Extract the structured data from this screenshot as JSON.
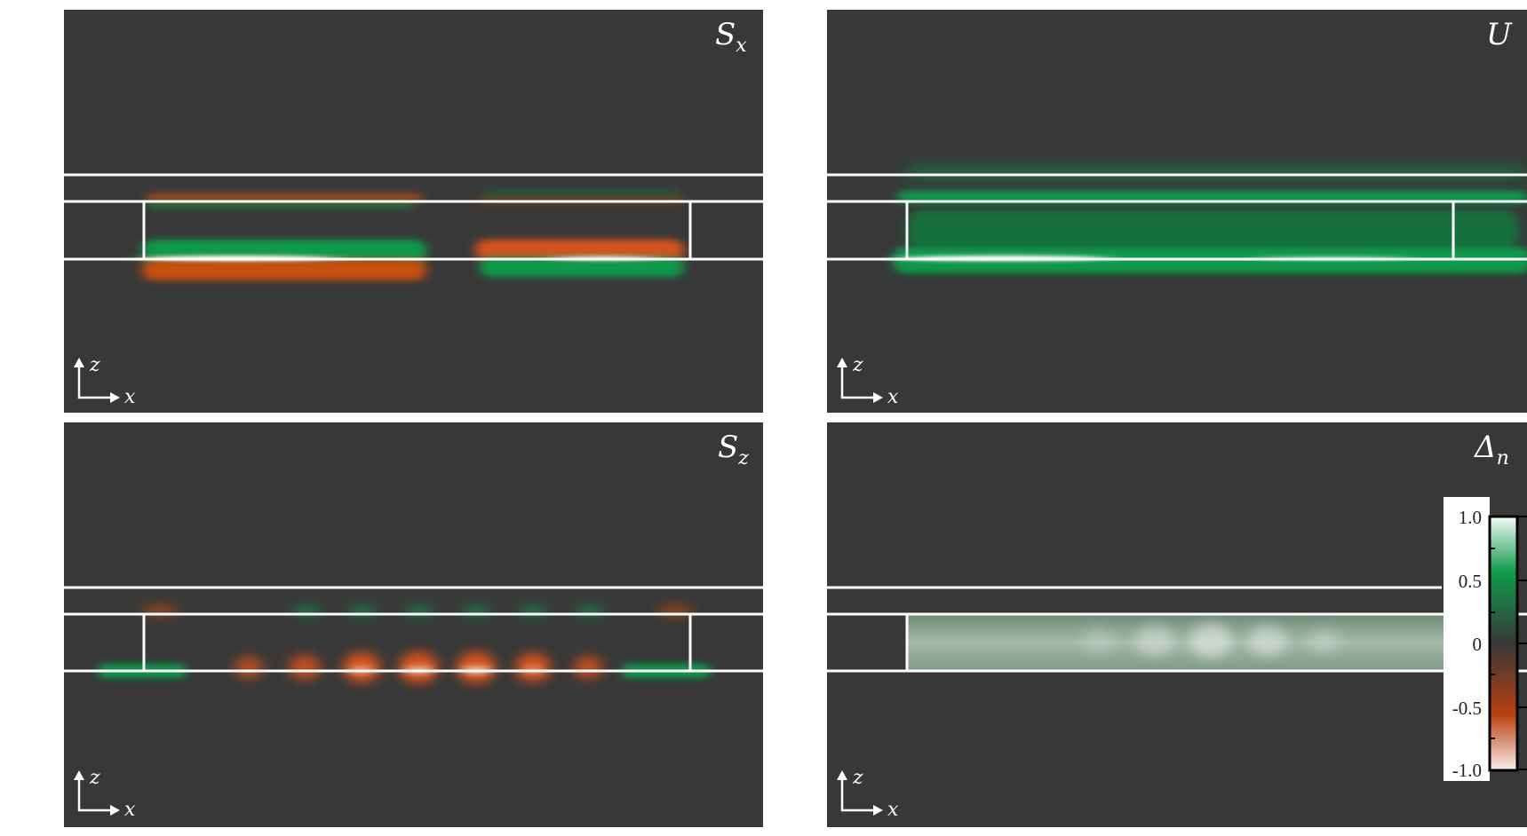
{
  "panels": [
    {
      "id": "sx",
      "label_main": "S",
      "label_sub": "x",
      "axis_up": "z",
      "axis_right": "x"
    },
    {
      "id": "u",
      "label_main": "U",
      "label_sub": "",
      "axis_up": "z",
      "axis_right": "x"
    },
    {
      "id": "sz",
      "label_main": "S",
      "label_sub": "z",
      "axis_up": "z",
      "axis_right": "x"
    },
    {
      "id": "dn",
      "label_main": "Δ",
      "label_sub": "n",
      "axis_up": "z",
      "axis_right": "x"
    }
  ],
  "colorbar": {
    "ticks": [
      "1.0",
      "0.5",
      "0",
      "-0.5",
      "-1.0"
    ],
    "colors": {
      "positive_peak": "#f2fbf5",
      "positive": "#0f9a4c",
      "zero": "#383838",
      "negative": "#b8400e",
      "negative_peak": "#fbeeee"
    }
  },
  "colors": {
    "background": "#383838",
    "green": "#11a352",
    "orange": "#d5531a",
    "outline": "#ffffff"
  }
}
